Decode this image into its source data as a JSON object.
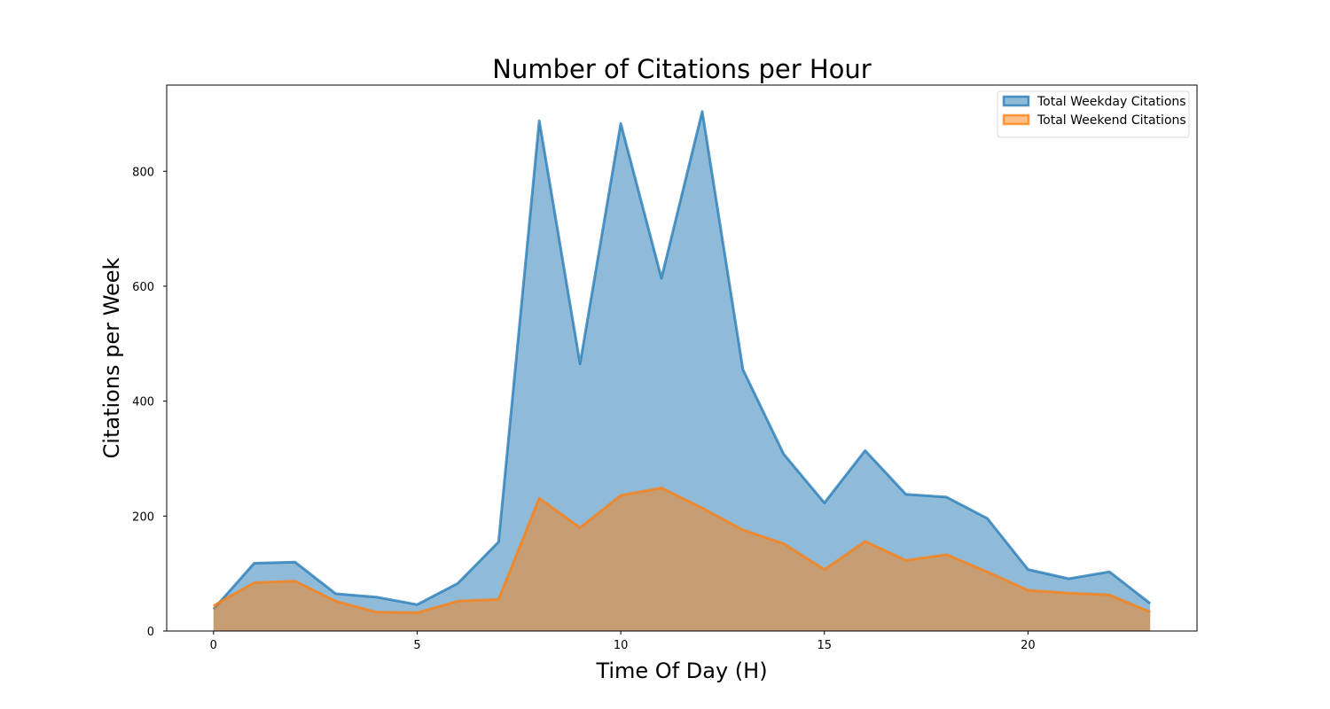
{
  "chart_data": {
    "type": "area",
    "title": "Number of Citations per Hour",
    "xlabel": "Time Of Day (H)",
    "ylabel": "Citations per Week",
    "xlim": [
      -1.15,
      24.15
    ],
    "ylim": [
      0,
      950
    ],
    "x_ticks": [
      0,
      5,
      10,
      15,
      20
    ],
    "y_ticks": [
      0,
      200,
      400,
      600,
      800
    ],
    "legend_position": "top-right",
    "grid": false,
    "x": [
      0,
      1,
      2,
      3,
      4,
      5,
      6,
      7,
      8,
      9,
      10,
      11,
      12,
      13,
      14,
      15,
      16,
      17,
      18,
      19,
      20,
      21,
      22,
      23
    ],
    "series": [
      {
        "name": "Total Weekday Citations",
        "color": "#1f77b4",
        "values": [
          38,
          118,
          120,
          65,
          59,
          46,
          83,
          155,
          888,
          465,
          883,
          614,
          904,
          455,
          308,
          223,
          314,
          238,
          233,
          196,
          107,
          91,
          103,
          48
        ]
      },
      {
        "name": "Total Weekend Citations",
        "color": "#ff7f0e",
        "values": [
          44,
          84,
          87,
          52,
          33,
          32,
          52,
          55,
          231,
          180,
          236,
          249,
          214,
          176,
          152,
          107,
          156,
          123,
          133,
          103,
          71,
          66,
          63,
          33
        ]
      }
    ]
  }
}
